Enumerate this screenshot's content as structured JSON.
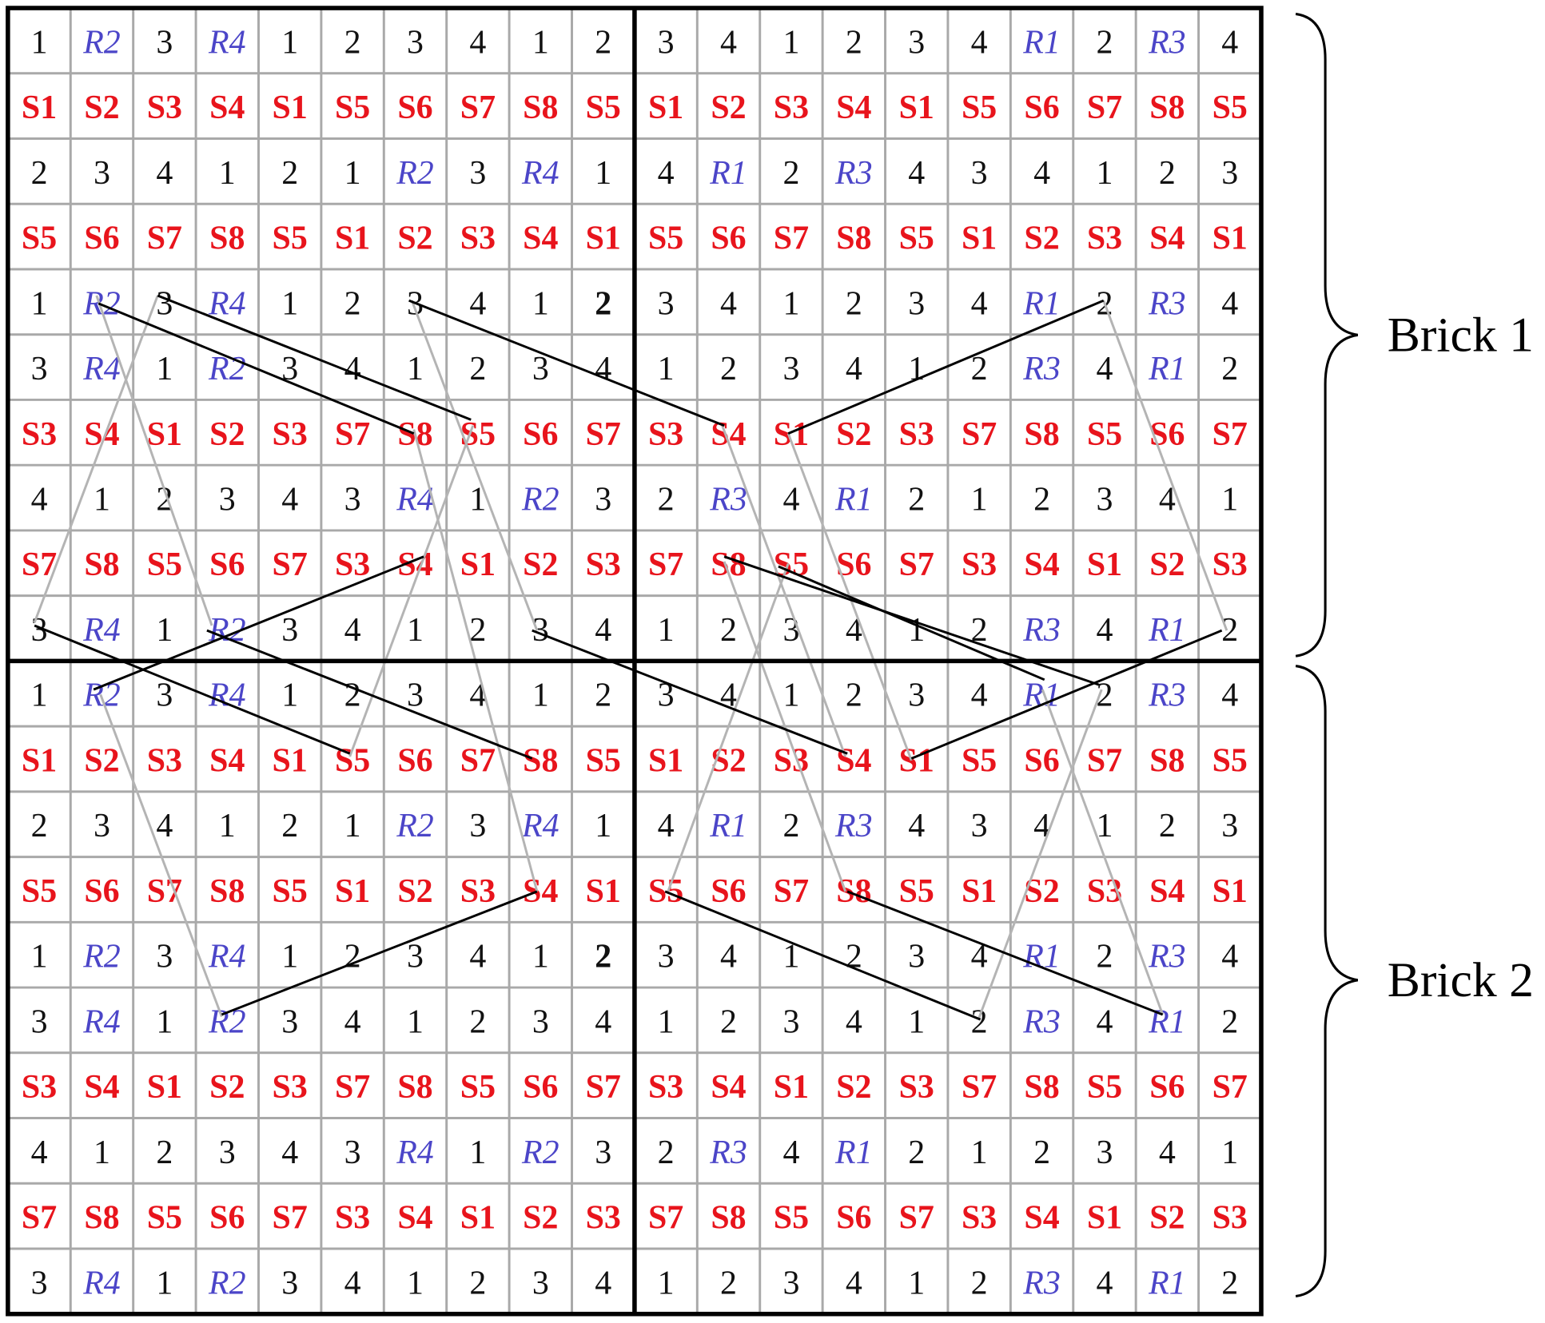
{
  "grid": {
    "rows": [
      [
        "1",
        "R2",
        "3",
        "R4",
        "1",
        "2",
        "3",
        "4",
        "1",
        "2",
        "3",
        "4",
        "1",
        "2",
        "3",
        "4",
        "R1",
        "2",
        "R3",
        "4"
      ],
      [
        "S1",
        "S2",
        "S3",
        "S4",
        "S1",
        "S5",
        "S6",
        "S7",
        "S8",
        "S5",
        "S1",
        "S2",
        "S3",
        "S4",
        "S1",
        "S5",
        "S6",
        "S7",
        "S8",
        "S5"
      ],
      [
        "2",
        "3",
        "4",
        "1",
        "2",
        "1",
        "R2",
        "3",
        "R4",
        "1",
        "4",
        "R1",
        "2",
        "R3",
        "4",
        "3",
        "4",
        "1",
        "2",
        "3"
      ],
      [
        "S5",
        "S6",
        "S7",
        "S8",
        "S5",
        "S1",
        "S2",
        "S3",
        "S4",
        "S1",
        "S5",
        "S6",
        "S7",
        "S8",
        "S5",
        "S1",
        "S2",
        "S3",
        "S4",
        "S1"
      ],
      [
        "1",
        "R2",
        "3",
        "R4",
        "1",
        "2",
        "3",
        "4",
        "1",
        "2",
        "3",
        "4",
        "1",
        "2",
        "3",
        "4",
        "R1",
        "2",
        "R3",
        "4"
      ],
      [
        "3",
        "R4",
        "1",
        "R2",
        "3",
        "4",
        "1",
        "2",
        "3",
        "4",
        "1",
        "2",
        "3",
        "4",
        "1",
        "2",
        "R3",
        "4",
        "R1",
        "2"
      ],
      [
        "S3",
        "S4",
        "S1",
        "S2",
        "S3",
        "S7",
        "S8",
        "S5",
        "S6",
        "S7",
        "S3",
        "S4",
        "S1",
        "S2",
        "S3",
        "S7",
        "S8",
        "S5",
        "S6",
        "S7"
      ],
      [
        "4",
        "1",
        "2",
        "3",
        "4",
        "3",
        "R4",
        "1",
        "R2",
        "3",
        "2",
        "R3",
        "4",
        "R1",
        "2",
        "1",
        "2",
        "3",
        "4",
        "1"
      ],
      [
        "S7",
        "S8",
        "S5",
        "S6",
        "S7",
        "S3",
        "S4",
        "S1",
        "S2",
        "S3",
        "S7",
        "S8",
        "S5",
        "S6",
        "S7",
        "S3",
        "S4",
        "S1",
        "S2",
        "S3"
      ],
      [
        "3",
        "R4",
        "1",
        "R2",
        "3",
        "4",
        "1",
        "2",
        "3",
        "4",
        "1",
        "2",
        "3",
        "4",
        "1",
        "2",
        "R3",
        "4",
        "R1",
        "2"
      ],
      [
        "1",
        "R2",
        "3",
        "R4",
        "1",
        "2",
        "3",
        "4",
        "1",
        "2",
        "3",
        "4",
        "1",
        "2",
        "3",
        "4",
        "R1",
        "2",
        "R3",
        "4"
      ],
      [
        "S1",
        "S2",
        "S3",
        "S4",
        "S1",
        "S5",
        "S6",
        "S7",
        "S8",
        "S5",
        "S1",
        "S2",
        "S3",
        "S4",
        "S1",
        "S5",
        "S6",
        "S7",
        "S8",
        "S5"
      ],
      [
        "2",
        "3",
        "4",
        "1",
        "2",
        "1",
        "R2",
        "3",
        "R4",
        "1",
        "4",
        "R1",
        "2",
        "R3",
        "4",
        "3",
        "4",
        "1",
        "2",
        "3"
      ],
      [
        "S5",
        "S6",
        "S7",
        "S8",
        "S5",
        "S1",
        "S2",
        "S3",
        "S4",
        "S1",
        "S5",
        "S6",
        "S7",
        "S8",
        "S5",
        "S1",
        "S2",
        "S3",
        "S4",
        "S1"
      ],
      [
        "1",
        "R2",
        "3",
        "R4",
        "1",
        "2",
        "3",
        "4",
        "1",
        "2",
        "3",
        "4",
        "1",
        "2",
        "3",
        "4",
        "R1",
        "2",
        "R3",
        "4"
      ],
      [
        "3",
        "R4",
        "1",
        "R2",
        "3",
        "4",
        "1",
        "2",
        "3",
        "4",
        "1",
        "2",
        "3",
        "4",
        "1",
        "2",
        "R3",
        "4",
        "R1",
        "2"
      ],
      [
        "S3",
        "S4",
        "S1",
        "S2",
        "S3",
        "S7",
        "S8",
        "S5",
        "S6",
        "S7",
        "S3",
        "S4",
        "S1",
        "S2",
        "S3",
        "S7",
        "S8",
        "S5",
        "S6",
        "S7"
      ],
      [
        "4",
        "1",
        "2",
        "3",
        "4",
        "3",
        "R4",
        "1",
        "R2",
        "3",
        "2",
        "R3",
        "4",
        "R1",
        "2",
        "1",
        "2",
        "3",
        "4",
        "1"
      ],
      [
        "S7",
        "S8",
        "S5",
        "S6",
        "S7",
        "S3",
        "S4",
        "S1",
        "S2",
        "S3",
        "S7",
        "S8",
        "S5",
        "S6",
        "S7",
        "S3",
        "S4",
        "S1",
        "S2",
        "S3"
      ],
      [
        "3",
        "R4",
        "1",
        "R2",
        "3",
        "4",
        "1",
        "2",
        "3",
        "4",
        "1",
        "2",
        "3",
        "4",
        "1",
        "2",
        "R3",
        "4",
        "R1",
        "2"
      ]
    ]
  },
  "bricks": [
    "Brick 1",
    "Brick 2"
  ]
}
